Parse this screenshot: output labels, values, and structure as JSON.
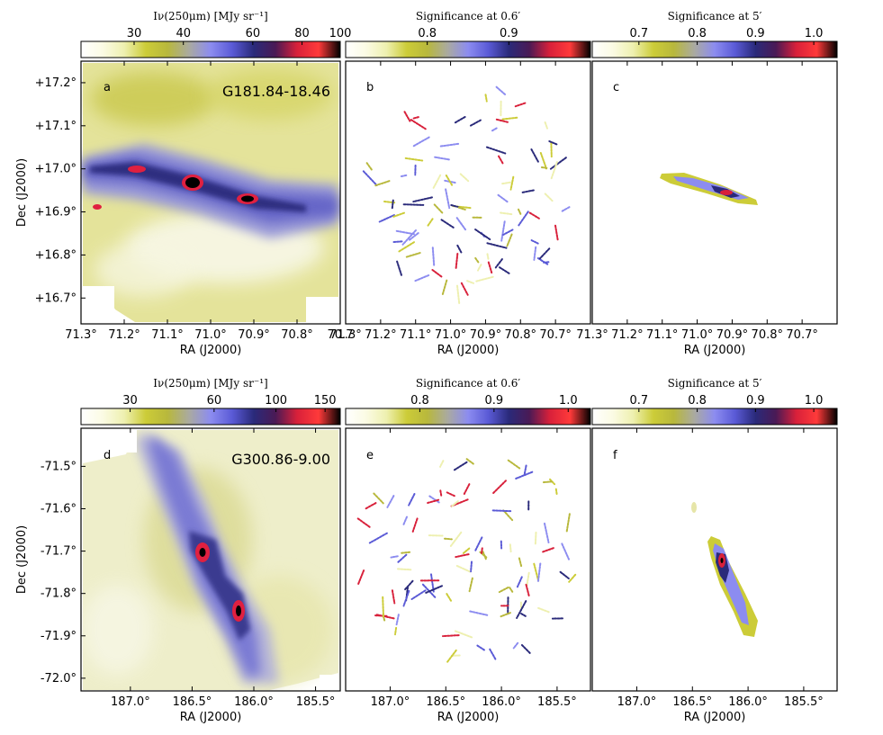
{
  "figure": {
    "top_ra_label": "RA (J2000)",
    "bottom_ra_label": "RA (J2000)",
    "dec_label": "Dec (J2000)"
  },
  "colors": {
    "colormap": [
      "#ffffff",
      "#fbfbe4",
      "#eef0b0",
      "#cccc38",
      "#b8b83c",
      "#aaaaa0",
      "#8c8cf0",
      "#5a5ad6",
      "#2a2a7a",
      "#4a1a55",
      "#d8203a",
      "#ff3a3a",
      "#000000"
    ],
    "frame": "#000000"
  },
  "chart_data": [
    {
      "panel": "a",
      "type": "heatmap",
      "title": "G181.84-18.46",
      "colorbar_title": "Iν(250μm) [MJy sr⁻¹]",
      "colorbar_ticks": [
        "30",
        "40",
        "60",
        "80",
        "100"
      ],
      "colorbar_tick_values": [
        30,
        40,
        60,
        80,
        100
      ],
      "colorbar_range": [
        22,
        100
      ],
      "colorbar_scale": "log",
      "xlabel": "RA (J2000)",
      "ylabel": "Dec (J2000)",
      "xticks": [
        "71.3°",
        "71.2°",
        "71.1°",
        "71.0°",
        "70.9°",
        "70.8°",
        "70.7"
      ],
      "xtick_values": [
        71.3,
        71.2,
        71.1,
        71.0,
        70.9,
        70.8,
        70.7
      ],
      "xlim": [
        71.3,
        70.7
      ],
      "yticks": [
        "+16.7°",
        "+16.8°",
        "+16.9°",
        "+17.0°",
        "+17.1°",
        "+17.2°"
      ],
      "ytick_values": [
        16.7,
        16.8,
        16.9,
        17.0,
        17.1,
        17.2
      ],
      "ylim": [
        16.64,
        17.25
      ]
    },
    {
      "panel": "b",
      "type": "heatmap",
      "colorbar_title": "Significance at 0.6′",
      "colorbar_ticks": [
        "0.8",
        "0.9"
      ],
      "colorbar_tick_values": [
        0.8,
        0.9
      ],
      "colorbar_range": [
        0.7,
        1.0
      ],
      "colorbar_scale": "linear",
      "xlabel": "RA (J2000)",
      "xticks": [
        "71.3°",
        "71.2°",
        "71.1°",
        "71.0°",
        "70.9°",
        "70.8°",
        "70.7°"
      ],
      "xtick_values": [
        71.3,
        71.2,
        71.1,
        71.0,
        70.9,
        70.8,
        70.7
      ],
      "xlim": [
        71.3,
        70.6
      ]
    },
    {
      "panel": "c",
      "type": "heatmap",
      "colorbar_title": "Significance at 5′",
      "colorbar_ticks": [
        "0.7",
        "0.8",
        "0.9",
        "1.0"
      ],
      "colorbar_tick_values": [
        0.7,
        0.8,
        0.9,
        1.0
      ],
      "colorbar_range": [
        0.62,
        1.04
      ],
      "colorbar_scale": "linear",
      "xlabel": "RA (J2000)",
      "xticks": [
        "71.3°",
        "71.2°",
        "71.1°",
        "71.0°",
        "70.9°",
        "70.8°",
        "70.7°"
      ],
      "xtick_values": [
        71.3,
        71.2,
        71.1,
        71.0,
        70.9,
        70.8,
        70.7
      ],
      "xlim": [
        71.3,
        70.6
      ]
    },
    {
      "panel": "d",
      "type": "heatmap",
      "title": "G300.86-9.00",
      "colorbar_title": "Iν(250μm) [MJy sr⁻¹]",
      "colorbar_ticks": [
        "30",
        "60",
        "100",
        "150"
      ],
      "colorbar_tick_values": [
        30,
        60,
        100,
        150
      ],
      "colorbar_range": [
        20,
        170
      ],
      "colorbar_scale": "log",
      "xlabel": "RA (J2000)",
      "ylabel": "Dec (J2000)",
      "xticks": [
        "187.0°",
        "186.5°",
        "186.0°",
        "185.5°"
      ],
      "xtick_values": [
        187.0,
        186.5,
        186.0,
        185.5
      ],
      "xlim": [
        187.4,
        185.3
      ],
      "yticks": [
        "-72.0°",
        "-71.9°",
        "-71.8°",
        "-71.7°",
        "-71.6°",
        "-71.5°"
      ],
      "ytick_values": [
        -72.0,
        -71.9,
        -71.8,
        -71.7,
        -71.6,
        -71.5
      ],
      "ylim": [
        -72.03,
        -71.41
      ]
    },
    {
      "panel": "e",
      "type": "heatmap",
      "colorbar_title": "Significance at 0.6′",
      "colorbar_ticks": [
        "0.8",
        "0.9",
        "1.0"
      ],
      "colorbar_tick_values": [
        0.8,
        0.9,
        1.0
      ],
      "colorbar_range": [
        0.7,
        1.03
      ],
      "colorbar_scale": "linear",
      "xlabel": "RA (J2000)",
      "xticks": [
        "187.0°",
        "186.5°",
        "186.0°",
        "185.5°"
      ],
      "xtick_values": [
        187.0,
        186.5,
        186.0,
        185.5
      ],
      "xlim": [
        187.4,
        185.2
      ]
    },
    {
      "panel": "f",
      "type": "heatmap",
      "colorbar_title": "Significance at 5′",
      "colorbar_ticks": [
        "0.7",
        "0.8",
        "0.9",
        "1.0"
      ],
      "colorbar_tick_values": [
        0.7,
        0.8,
        0.9,
        1.0
      ],
      "colorbar_range": [
        0.62,
        1.04
      ],
      "colorbar_scale": "linear",
      "xlabel": "RA (J2000)",
      "xticks": [
        "187.0°",
        "186.5°",
        "186.0°",
        "185.5°"
      ],
      "xtick_values": [
        187.0,
        186.5,
        186.0,
        185.5
      ],
      "xlim": [
        187.4,
        185.2
      ]
    }
  ]
}
